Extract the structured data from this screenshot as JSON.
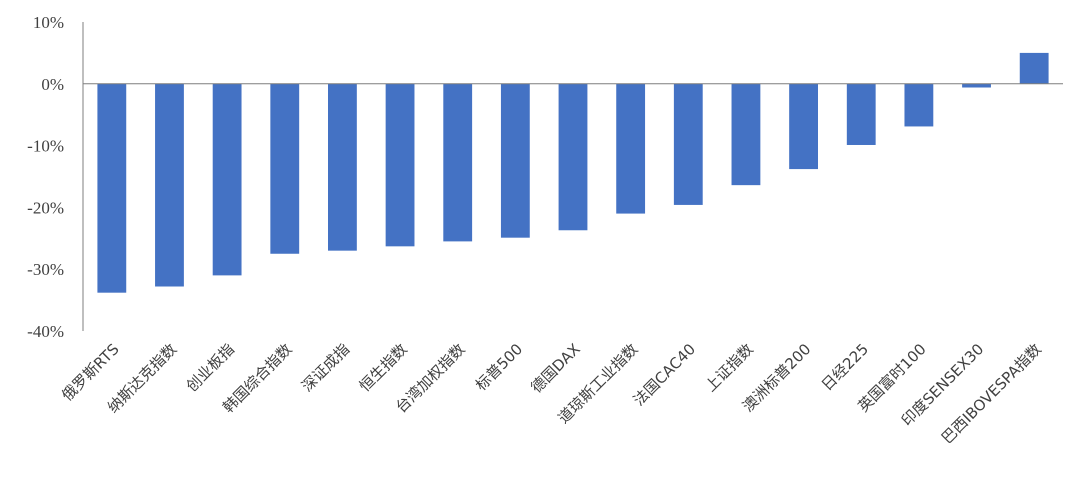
{
  "chart_data": {
    "type": "bar",
    "title": "",
    "xlabel": "",
    "ylabel": "",
    "categories": [
      "俄罗斯RTS",
      "纳斯达克指数",
      "创业板指",
      "韩国综合指数",
      "深证成指",
      "恒生指数",
      "台湾加权指数",
      "标普500",
      "德国DAX",
      "道琼斯工业指数",
      "法国CAC40",
      "上证指数",
      "澳洲标普200",
      "日经225",
      "英国富时100",
      "印度SENSEX30",
      "巴西IBOVESPA指数"
    ],
    "values": [
      -33.8,
      -32.8,
      -31.0,
      -27.5,
      -27.0,
      -26.3,
      -25.5,
      -24.9,
      -23.7,
      -21.0,
      -19.6,
      -16.4,
      -13.8,
      -9.9,
      -6.9,
      -0.6,
      5.0
    ],
    "ylim": [
      -40,
      10
    ],
    "yticks": [
      10,
      0,
      -10,
      -20,
      -30,
      -40
    ],
    "ytick_labels": [
      "10%",
      "0%",
      "-10%",
      "-20%",
      "-30%",
      "-40%"
    ],
    "bar_color": "#4472c4",
    "grid": false,
    "legend": "none"
  }
}
